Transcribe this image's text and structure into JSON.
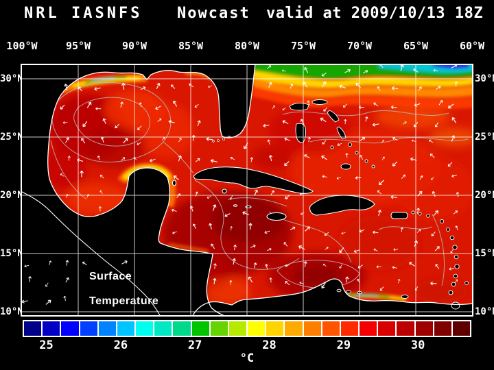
{
  "title": {
    "left": "NRL IASNFS",
    "center": "Nowcast",
    "right": "valid at 2009/10/13 18Z"
  },
  "axes": {
    "lon": [
      "100°W",
      "95°W",
      "90°W",
      "85°W",
      "80°W",
      "75°W",
      "70°W",
      "65°W",
      "60°W"
    ],
    "lat": [
      "30°N",
      "25°N",
      "20°N",
      "15°N",
      "10°N"
    ]
  },
  "map_overlay": {
    "line1": "Surface",
    "line2": "Temperature"
  },
  "colorbar": {
    "unit": "°C",
    "tick_values": [
      25,
      26,
      27,
      28,
      29,
      30
    ],
    "range_min": 24.7,
    "range_max": 30.7,
    "cell_colors": [
      "#000089",
      "#0000c4",
      "#0000ff",
      "#0041ff",
      "#0083ff",
      "#00c4ff",
      "#00ffee",
      "#00e8c4",
      "#00d98c",
      "#00c400",
      "#66d400",
      "#b6ea00",
      "#ffff00",
      "#ffd400",
      "#ffaa00",
      "#ff7f00",
      "#ff5500",
      "#ff2a00",
      "#f40000",
      "#d90000",
      "#bc0000",
      "#9e0000",
      "#800000",
      "#5e0000"
    ]
  },
  "chart_data": {
    "type": "heatmap",
    "title": "NRL IASNFS Nowcast valid at 2009/10/13 18Z",
    "field_label": "Surface Temperature",
    "unit": "°C",
    "x_tick_labels": [
      "100°W",
      "95°W",
      "90°W",
      "85°W",
      "80°W",
      "75°W",
      "70°W",
      "65°W",
      "60°W"
    ],
    "y_tick_labels": [
      "30°N",
      "25°N",
      "20°N",
      "15°N",
      "10°N"
    ],
    "colorbar_ticks": [
      25,
      26,
      27,
      28,
      29,
      30
    ],
    "colorbar_range": [
      24.7,
      30.7
    ],
    "legend_position": "bottom",
    "grid": true
  }
}
